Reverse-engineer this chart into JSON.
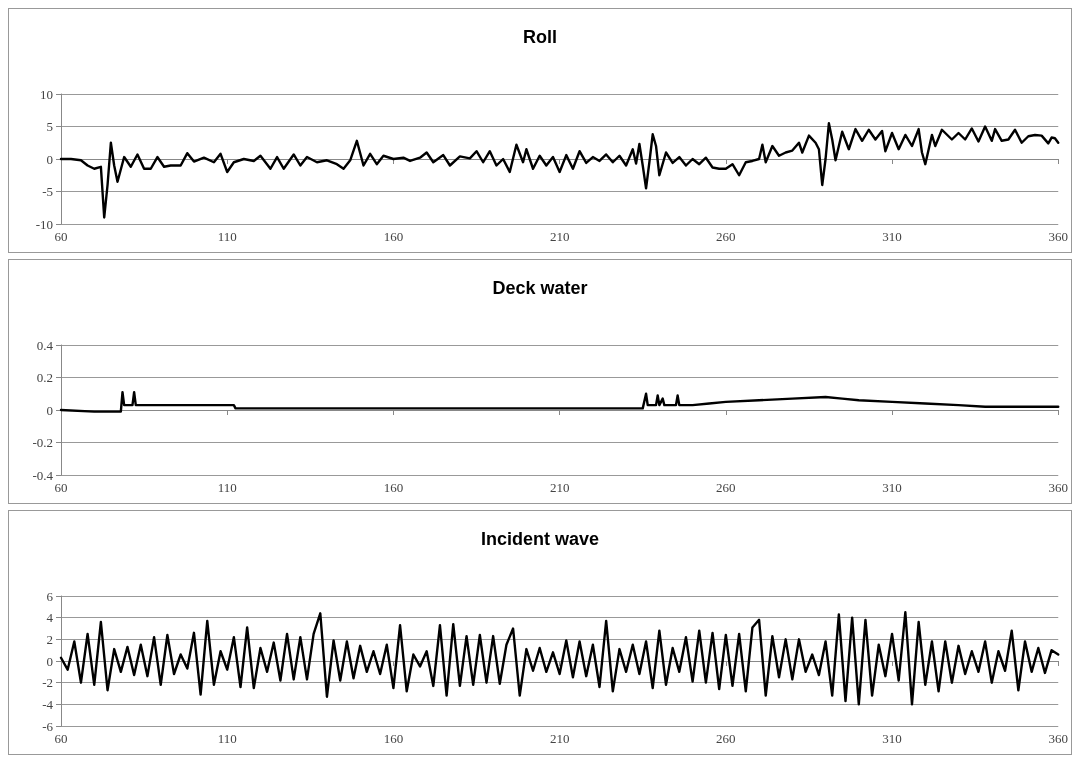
{
  "chart_data": [
    {
      "type": "line",
      "title": "Roll",
      "xlim": [
        60,
        360
      ],
      "xticks": [
        60,
        110,
        160,
        210,
        260,
        310,
        360
      ],
      "ylim": [
        -10,
        10
      ],
      "yticks": [
        -10,
        -5,
        0,
        5,
        10
      ],
      "grid": "y",
      "marker": "none",
      "line_style": "solid",
      "x": [
        60,
        63,
        66,
        68,
        70,
        72,
        73,
        74,
        75,
        76,
        77,
        79,
        81,
        83,
        85,
        87,
        89,
        91,
        93,
        96,
        98,
        100,
        103,
        106,
        108,
        110,
        112,
        115,
        118,
        120,
        123,
        125,
        127,
        130,
        132,
        134,
        137,
        140,
        143,
        145,
        147,
        149,
        151,
        153,
        155,
        157,
        160,
        163,
        165,
        168,
        170,
        172,
        175,
        177,
        180,
        183,
        185,
        187,
        189,
        191,
        193,
        195,
        197,
        199,
        200,
        202,
        204,
        206,
        208,
        210,
        212,
        214,
        216,
        218,
        220,
        222,
        224,
        226,
        228,
        230,
        232,
        233,
        234,
        235,
        236,
        237,
        238,
        239,
        240,
        242,
        244,
        246,
        248,
        250,
        252,
        254,
        256,
        258,
        260,
        262,
        264,
        266,
        268,
        270,
        271,
        272,
        274,
        276,
        278,
        280,
        282,
        283,
        285,
        287,
        288,
        289,
        290,
        291,
        292,
        293,
        295,
        297,
        299,
        301,
        303,
        305,
        307,
        308,
        310,
        312,
        314,
        316,
        318,
        319,
        320,
        322,
        323,
        325,
        328,
        330,
        332,
        334,
        336,
        338,
        340,
        341,
        343,
        345,
        347,
        349,
        351,
        353,
        355,
        357,
        358,
        359,
        360
      ],
      "series": [
        {
          "color": "#000000",
          "values": [
            0,
            0,
            -0.2,
            -1,
            -1.5,
            -1.2,
            -9,
            -4,
            2.5,
            -1,
            -3.5,
            0.3,
            -1.2,
            0.7,
            -1.5,
            -1.5,
            0.3,
            -1.2,
            -1,
            -1,
            0.9,
            -0.4,
            0.2,
            -0.5,
            0.8,
            -2,
            -0.5,
            0,
            -0.3,
            0.5,
            -1.5,
            0.3,
            -1.5,
            0.7,
            -1,
            0.3,
            -0.5,
            -0.2,
            -0.8,
            -1.5,
            -0.2,
            2.8,
            -1,
            0.8,
            -0.8,
            0.5,
            0,
            0.2,
            -0.3,
            0.2,
            1,
            -0.5,
            0.6,
            -1,
            0.4,
            0.1,
            1.2,
            -0.5,
            1.2,
            -1,
            0,
            -2,
            2.2,
            -0.5,
            1.5,
            -1.5,
            0.5,
            -1,
            0.3,
            -2,
            0.6,
            -1.5,
            1.2,
            -0.6,
            0.3,
            -0.3,
            0.7,
            -0.5,
            0.5,
            -1,
            1.5,
            -0.7,
            2.3,
            -1,
            -4.5,
            -0.5,
            3.8,
            2,
            -2.5,
            1,
            -0.6,
            0.3,
            -1,
            0,
            -0.8,
            0.2,
            -1.3,
            -1.5,
            -1.5,
            -0.8,
            -2.5,
            -0.5,
            -0.3,
            0,
            2.2,
            -0.5,
            2,
            0.5,
            1,
            1.3,
            2.5,
            1,
            3.6,
            2.5,
            1.5,
            -4,
            0,
            5.5,
            3,
            -0.2,
            4.2,
            1.5,
            4.6,
            2.8,
            4.5,
            3,
            4.3,
            1.2,
            4,
            1.5,
            3.7,
            2,
            4.6,
            1,
            -0.8,
            3.7,
            2,
            4.5,
            3,
            4,
            3,
            4.7,
            2.7,
            5,
            2.8,
            4.6,
            2.8,
            3,
            4.5,
            2.5,
            3.5,
            3.7,
            3.6,
            2.4,
            3.3,
            3.2,
            2.5
          ]
        }
      ]
    },
    {
      "type": "line",
      "title": "Deck water",
      "xlim": [
        60,
        360
      ],
      "xticks": [
        60,
        110,
        160,
        210,
        260,
        310,
        360
      ],
      "ylim": [
        -0.4,
        0.4
      ],
      "yticks": [
        -0.4,
        -0.2,
        0,
        0.2,
        0.4
      ],
      "grid": "y",
      "marker": "none",
      "line_style": "solid",
      "x": [
        60,
        70,
        78,
        78.5,
        79,
        81.5,
        82,
        82.5,
        112,
        112.5,
        235,
        236,
        236.5,
        239,
        239.5,
        240,
        241,
        241.5,
        245,
        245.5,
        246,
        250,
        255,
        260,
        270,
        280,
        290,
        295,
        300,
        310,
        320,
        330,
        338,
        360
      ],
      "series": [
        {
          "color": "#000000",
          "values": [
            0,
            -0.01,
            -0.01,
            0.11,
            0.03,
            0.03,
            0.11,
            0.03,
            0.03,
            0.01,
            0.01,
            0.1,
            0.03,
            0.03,
            0.09,
            0.03,
            0.07,
            0.03,
            0.03,
            0.09,
            0.03,
            0.03,
            0.04,
            0.05,
            0.06,
            0.07,
            0.08,
            0.07,
            0.06,
            0.05,
            0.04,
            0.03,
            0.02,
            0.02
          ]
        }
      ]
    },
    {
      "type": "line",
      "title": "Incident wave",
      "xlim": [
        60,
        360
      ],
      "xticks": [
        60,
        110,
        160,
        210,
        260,
        310,
        360
      ],
      "ylim": [
        -6,
        6
      ],
      "yticks": [
        -6,
        -4,
        -2,
        0,
        2,
        4,
        6
      ],
      "grid": "y",
      "marker": "none",
      "line_style": "solid",
      "x": [
        60,
        62,
        64,
        66,
        68,
        70,
        72,
        74,
        76,
        78,
        80,
        82,
        84,
        86,
        88,
        90,
        92,
        94,
        96,
        98,
        100,
        102,
        104,
        106,
        108,
        110,
        112,
        114,
        116,
        118,
        120,
        122,
        124,
        126,
        128,
        130,
        132,
        134,
        136,
        138,
        140,
        142,
        144,
        146,
        148,
        150,
        152,
        154,
        156,
        158,
        160,
        162,
        164,
        166,
        168,
        170,
        172,
        174,
        176,
        178,
        180,
        182,
        184,
        186,
        188,
        190,
        192,
        194,
        196,
        198,
        200,
        202,
        204,
        206,
        208,
        210,
        212,
        214,
        216,
        218,
        220,
        222,
        224,
        226,
        228,
        230,
        232,
        234,
        236,
        238,
        240,
        242,
        244,
        246,
        248,
        250,
        252,
        254,
        256,
        258,
        260,
        262,
        264,
        266,
        268,
        270,
        272,
        274,
        276,
        278,
        280,
        282,
        284,
        286,
        288,
        290,
        292,
        294,
        296,
        298,
        300,
        302,
        304,
        306,
        308,
        310,
        312,
        314,
        316,
        318,
        320,
        322,
        324,
        326,
        328,
        330,
        332,
        334,
        336,
        338,
        340,
        342,
        344,
        346,
        348,
        350,
        352,
        354,
        356,
        358,
        360
      ],
      "series": [
        {
          "color": "#000000",
          "values": [
            0.3,
            -0.8,
            1.8,
            -2,
            2.5,
            -2.2,
            3.6,
            -2.7,
            1.1,
            -1,
            1.3,
            -1.3,
            1.5,
            -1.4,
            2.2,
            -2.2,
            2.4,
            -1.2,
            0.6,
            -0.7,
            2.6,
            -3.1,
            3.7,
            -2.2,
            0.9,
            -0.8,
            2.2,
            -2.4,
            3.1,
            -2.5,
            1.2,
            -1,
            1.7,
            -1.8,
            2.5,
            -1.7,
            2.2,
            -1.7,
            2.5,
            4.4,
            -3.3,
            1.9,
            -1.8,
            1.8,
            -1.6,
            1.4,
            -1,
            0.9,
            -1.2,
            1.5,
            -2.5,
            3.3,
            -2.8,
            0.6,
            -0.5,
            0.9,
            -2.3,
            3.3,
            -3.2,
            3.4,
            -2.3,
            2.3,
            -2.2,
            2.4,
            -2,
            2.3,
            -2.1,
            1.5,
            3,
            -3.2,
            1.1,
            -0.9,
            1.2,
            -1,
            0.8,
            -1.2,
            1.9,
            -1.5,
            1.8,
            -1.4,
            1.5,
            -2.4,
            3.7,
            -2.8,
            1.1,
            -1,
            1.5,
            -1.2,
            1.8,
            -2.5,
            2.8,
            -2.2,
            1.2,
            -1,
            2.2,
            -1.9,
            2.8,
            -2,
            2.6,
            -2.6,
            2.4,
            -2.3,
            2.5,
            -2.8,
            3.1,
            3.8,
            -3.2,
            2.3,
            -1.5,
            2,
            -1.7,
            2,
            -1,
            0.6,
            -1.3,
            1.8,
            -3.2,
            4.3,
            -3.7,
            4,
            -4,
            3.8,
            -3.2,
            1.5,
            -1.4,
            2.5,
            -1.8,
            4.5,
            -4,
            3.6,
            -2.2,
            1.8,
            -2.8,
            1.8,
            -2,
            1.4,
            -1.2,
            0.9,
            -1,
            1.8,
            -2,
            0.9,
            -0.9,
            2.8,
            -2.7,
            1.8,
            -1,
            1.2,
            -1.1,
            1,
            0.6
          ]
        }
      ]
    }
  ]
}
